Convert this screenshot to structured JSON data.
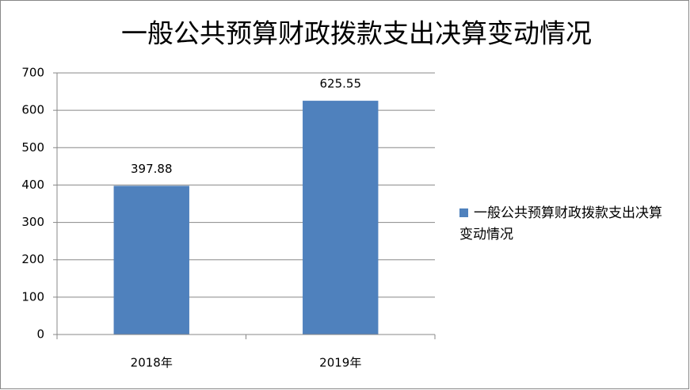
{
  "chart_data": {
    "type": "bar",
    "title": "一般公共预算财政拨款支出决算变动情况",
    "categories": [
      "2018年",
      "2019年"
    ],
    "series": [
      {
        "name": "一般公共预算财政拨款支出决算变动情况",
        "color": "#4f81bd",
        "values": [
          397.88,
          625.55
        ]
      }
    ],
    "ylim": [
      0,
      700
    ],
    "yticks": [
      0,
      100,
      200,
      300,
      400,
      500,
      600,
      700
    ],
    "grid": true,
    "legend": "right"
  }
}
